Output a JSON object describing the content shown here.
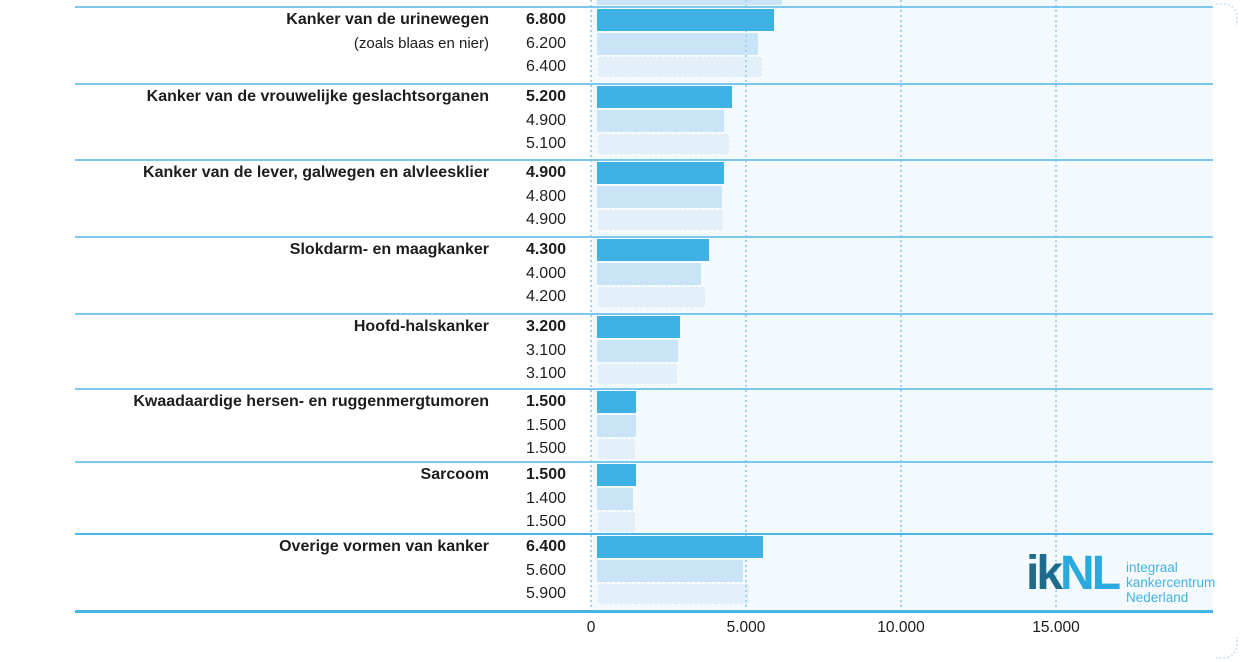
{
  "chart_data": {
    "type": "bar",
    "orientation": "horizontal",
    "grid": "dotted-vertical",
    "xlim": [
      0,
      20000
    ],
    "x_ticks": [
      {
        "value": 0,
        "label": "0"
      },
      {
        "value": 5000,
        "label": "5.000"
      },
      {
        "value": 10000,
        "label": "10.000"
      },
      {
        "value": 15000,
        "label": "15.000"
      }
    ],
    "rows": [
      {
        "label": "Kanker van de urinewegen",
        "sublabel": "(zoals blaas en nier)",
        "values": [
          6800,
          6200,
          6400
        ],
        "value_labels": [
          "6.800",
          "6.200",
          "6.400"
        ]
      },
      {
        "label": "Kanker van de vrouwelijke geslachtsorganen",
        "values": [
          5200,
          4900,
          5100
        ],
        "value_labels": [
          "5.200",
          "4.900",
          "5.100"
        ]
      },
      {
        "label": "Kanker van de lever, galwegen en alvleesklier",
        "values": [
          4900,
          4800,
          4900
        ],
        "value_labels": [
          "4.900",
          "4.800",
          "4.900"
        ]
      },
      {
        "label": "Slokdarm- en maagkanker",
        "values": [
          4300,
          4000,
          4200
        ],
        "value_labels": [
          "4.300",
          "4.000",
          "4.200"
        ]
      },
      {
        "label": "Hoofd-halskanker",
        "values": [
          3200,
          3100,
          3100
        ],
        "value_labels": [
          "3.200",
          "3.100",
          "3.100"
        ]
      },
      {
        "label": "Kwaadaardige hersen- en ruggenmergtumoren",
        "values": [
          1500,
          1500,
          1500
        ],
        "value_labels": [
          "1.500",
          "1.500",
          "1.500"
        ]
      },
      {
        "label": "Sarcoom",
        "values": [
          1500,
          1400,
          1500
        ],
        "value_labels": [
          "1.500",
          "1.400",
          "1.500"
        ]
      },
      {
        "label": "Overige vormen van kanker",
        "values": [
          6400,
          5600,
          5900
        ],
        "value_labels": [
          "6.400",
          "5.600",
          "5.900"
        ]
      }
    ],
    "cropped_previous_row_bar": {
      "visible": true,
      "approx_value": 7100
    },
    "colors": {
      "bar_current": "#40b1e4",
      "bar_light": "#c9e4f6",
      "bar_lighter_dashed": "#e3eff9",
      "plot_background": "#f3f9fd",
      "gridline": "#a3d5ef",
      "row_separator": "#7cc8ed",
      "strong_separator": "#4bb5e4",
      "text": "#1d1d1b"
    }
  },
  "logo": {
    "mark_dark": "ik",
    "mark_light": "NL",
    "text_lines": [
      "integraal",
      "kankercentrum",
      "Nederland"
    ],
    "colors": {
      "mark_dark": "#1e6b8b",
      "mark_light": "#2aa8e0",
      "text": "#47b1e1"
    }
  }
}
